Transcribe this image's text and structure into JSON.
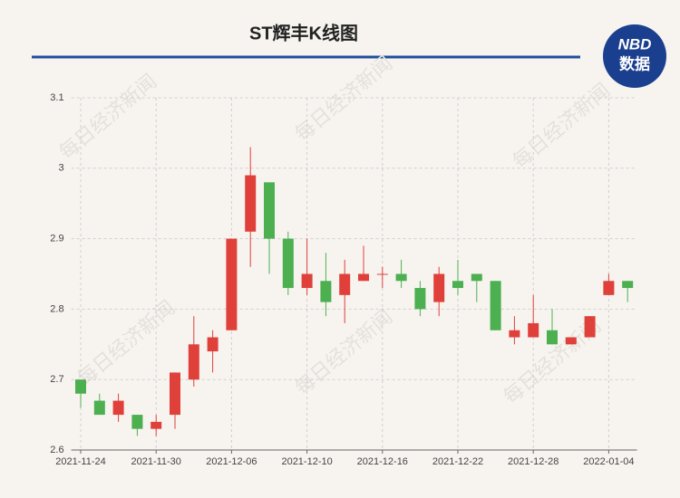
{
  "chart_data": {
    "type": "candlestick",
    "title": "ST辉丰K线图",
    "logo": [
      "NBD",
      "数据"
    ],
    "watermark": "每日经济新闻",
    "categories": [
      "2021-11-24",
      null,
      null,
      null,
      "2021-11-30",
      null,
      null,
      null,
      "2021-12-06",
      null,
      null,
      null,
      "2021-12-10",
      null,
      null,
      null,
      "2021-12-16",
      null,
      null,
      null,
      "2021-12-22",
      null,
      null,
      null,
      "2021-12-28",
      null,
      null,
      null,
      "2022-01-04",
      null
    ],
    "open": [
      2.7,
      2.67,
      2.65,
      2.65,
      2.63,
      2.65,
      2.7,
      2.74,
      2.77,
      2.91,
      2.98,
      2.9,
      2.83,
      2.84,
      2.82,
      2.84,
      2.85,
      2.85,
      2.83,
      2.81,
      2.84,
      2.85,
      2.84,
      2.76,
      2.76,
      2.77,
      2.75,
      2.76,
      2.82,
      2.84
    ],
    "high": [
      2.7,
      2.68,
      2.68,
      2.65,
      2.65,
      2.71,
      2.79,
      2.77,
      2.9,
      3.03,
      2.98,
      2.91,
      2.9,
      2.88,
      2.87,
      2.89,
      2.86,
      2.87,
      2.84,
      2.86,
      2.87,
      2.85,
      2.84,
      2.79,
      2.82,
      2.8,
      2.76,
      2.79,
      2.85,
      2.84
    ],
    "low": [
      2.66,
      2.65,
      2.64,
      2.62,
      2.62,
      2.63,
      2.69,
      2.71,
      2.77,
      2.86,
      2.85,
      2.82,
      2.82,
      2.79,
      2.78,
      2.84,
      2.83,
      2.83,
      2.79,
      2.79,
      2.82,
      2.81,
      2.77,
      2.75,
      2.76,
      2.75,
      2.75,
      2.76,
      2.82,
      2.81
    ],
    "close": [
      2.68,
      2.65,
      2.67,
      2.63,
      2.64,
      2.71,
      2.75,
      2.76,
      2.9,
      2.99,
      2.9,
      2.83,
      2.85,
      2.81,
      2.85,
      2.85,
      2.85,
      2.84,
      2.8,
      2.85,
      2.83,
      2.84,
      2.77,
      2.77,
      2.78,
      2.75,
      2.76,
      2.79,
      2.84,
      2.83
    ],
    "up_color": "#e0403a",
    "down_color": "#4caf50",
    "ylim": [
      2.6,
      3.1
    ],
    "yticks": [
      2.6,
      2.7,
      2.8,
      2.9,
      3,
      3.1
    ],
    "grid": true
  }
}
